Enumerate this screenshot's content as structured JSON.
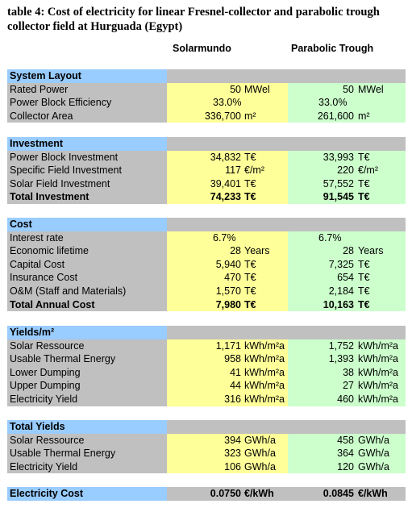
{
  "caption": "table 4: Cost of electricity for linear Fresnel-collector and parabolic trough collector field at Hurguada (Egypt)",
  "columns": [
    "Solarmundo",
    "Parabolic Trough"
  ],
  "sections": [
    {
      "title": "System Layout",
      "rows": [
        {
          "label": "Rated Power",
          "s_val": "50",
          "s_unit": "MWel",
          "p_val": "50",
          "p_unit": "MWel"
        },
        {
          "label": "Power Block Efficiency",
          "s_val": "33.0%",
          "s_unit": "",
          "p_val": "33.0%",
          "p_unit": "",
          "pct": true
        },
        {
          "label": "Collector Area",
          "s_val": "336,700",
          "s_unit": "m²",
          "p_val": "261,600",
          "p_unit": "m²"
        }
      ]
    },
    {
      "title": "Investment",
      "rows": [
        {
          "label": "Power Block Investment",
          "s_val": "34,832",
          "s_unit": "T€",
          "p_val": "33,993",
          "p_unit": "T€"
        },
        {
          "label": "Specific Field Investment",
          "s_val": "117",
          "s_unit": "€/m²",
          "p_val": "220",
          "p_unit": "€/m²"
        },
        {
          "label": "Solar Field Investment",
          "s_val": "39,401",
          "s_unit": "T€",
          "p_val": "57,552",
          "p_unit": "T€"
        },
        {
          "label": "Total Investment",
          "s_val": "74,233",
          "s_unit": "T€",
          "p_val": "91,545",
          "p_unit": "T€",
          "bold": true
        }
      ]
    },
    {
      "title": "Cost",
      "rows": [
        {
          "label": "Interest rate",
          "s_val": "6.7%",
          "s_unit": "",
          "p_val": "6.7%",
          "p_unit": "",
          "pct": true
        },
        {
          "label": "Economic lifetime",
          "s_val": "28",
          "s_unit": "Years",
          "p_val": "28",
          "p_unit": "Years"
        },
        {
          "label": "Capital Cost",
          "s_val": "5,940",
          "s_unit": "T€",
          "p_val": "7,325",
          "p_unit": "T€"
        },
        {
          "label": "Insurance Cost",
          "s_val": "470",
          "s_unit": "T€",
          "p_val": "654",
          "p_unit": "T€"
        },
        {
          "label": "O&M (Staff and Materials)",
          "s_val": "1,570",
          "s_unit": "T€",
          "p_val": "2,184",
          "p_unit": "T€"
        },
        {
          "label": "Total Annual Cost",
          "s_val": "7,980",
          "s_unit": "T€",
          "p_val": "10,163",
          "p_unit": "T€",
          "bold": true
        }
      ]
    },
    {
      "title": "Yields/m²",
      "rows": [
        {
          "label": "Solar Ressource",
          "s_val": "1,171",
          "s_unit": "kWh/m²a",
          "p_val": "1,752",
          "p_unit": "kWh/m²a"
        },
        {
          "label": "Usable Thermal Energy",
          "s_val": "958",
          "s_unit": "kWh/m²a",
          "p_val": "1,393",
          "p_unit": "kWh/m²a"
        },
        {
          "label": "Lower Dumping",
          "s_val": "41",
          "s_unit": "kWh/m²a",
          "p_val": "38",
          "p_unit": "kWh/m²a"
        },
        {
          "label": "Upper Dumping",
          "s_val": "44",
          "s_unit": "kWh/m²a",
          "p_val": "27",
          "p_unit": "kWh/m²a"
        },
        {
          "label": "Electricity Yield",
          "s_val": "316",
          "s_unit": "kWh/m²a",
          "p_val": "460",
          "p_unit": "kWh/m²a"
        }
      ]
    },
    {
      "title": "Total Yields",
      "rows": [
        {
          "label": "Solar Ressource",
          "s_val": "394",
          "s_unit": "GWh/a",
          "p_val": "458",
          "p_unit": "GWh/a"
        },
        {
          "label": "Usable Thermal Energy",
          "s_val": "323",
          "s_unit": "GWh/a",
          "p_val": "364",
          "p_unit": "GWh/a"
        },
        {
          "label": "Electricity Yield",
          "s_val": "106",
          "s_unit": "GWh/a",
          "p_val": "120",
          "p_unit": "GWh/a"
        }
      ]
    }
  ],
  "final": {
    "label": "Electricity Cost",
    "s_val": "0.0750",
    "s_unit": "€/kWh",
    "p_val": "0.0845",
    "p_unit": "€/kWh"
  }
}
